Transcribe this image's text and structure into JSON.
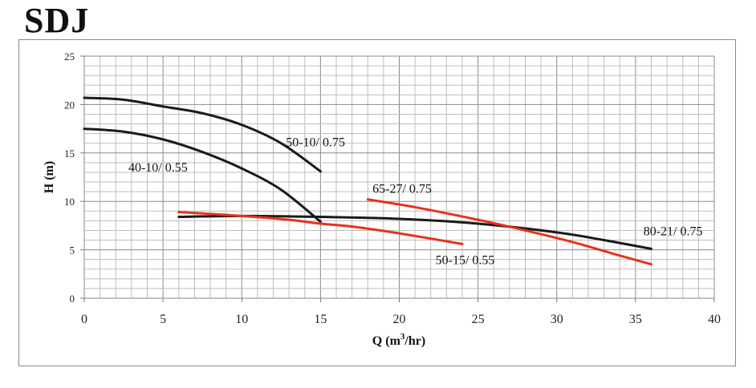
{
  "chart_data": {
    "type": "line",
    "title": "SDJ",
    "xlabel": "Q (m",
    "xlabel_sup": "3",
    "xlabel_tail": "/hr)",
    "ylabel": "H (m)",
    "xlim": [
      0,
      40
    ],
    "ylim": [
      0,
      25
    ],
    "xticks": [
      0,
      5,
      10,
      15,
      20,
      25,
      30,
      35,
      40
    ],
    "yticks": [
      0,
      5,
      10,
      15,
      20,
      25
    ],
    "grid": true,
    "grid_minor_step_x": 1,
    "grid_minor_step_y": 1,
    "series": [
      {
        "name": "50-10/ 0.75",
        "color": "#1a1a1a",
        "x": [
          0,
          2.5,
          5,
          7.5,
          10,
          12.5,
          15
        ],
        "y": [
          20.7,
          20.5,
          19.8,
          19.1,
          17.9,
          16.0,
          13.1
        ],
        "label_at": [
          12.8,
          15.7
        ]
      },
      {
        "name": "40-10/ 0.55",
        "color": "#1a1a1a",
        "x": [
          0,
          2.5,
          5,
          7.5,
          10,
          12.5,
          15
        ],
        "y": [
          17.5,
          17.2,
          16.4,
          15.1,
          13.4,
          11.2,
          7.9
        ],
        "label_at": [
          2.8,
          13.1
        ]
      },
      {
        "name": "80-21/ 0.75",
        "color": "#1a1a1a",
        "x": [
          6,
          10,
          15,
          20,
          25,
          30,
          33,
          36
        ],
        "y": [
          8.4,
          8.5,
          8.4,
          8.2,
          7.7,
          6.8,
          6.0,
          5.1
        ],
        "label_at": [
          35.5,
          6.5
        ]
      },
      {
        "name": "65-27/ 0.75",
        "color": "#e8321c",
        "x": [
          18,
          21,
          25,
          28,
          31,
          34,
          36
        ],
        "y": [
          10.2,
          9.4,
          8.1,
          7.0,
          5.8,
          4.4,
          3.5
        ],
        "label_at": [
          18.3,
          10.9
        ]
      },
      {
        "name": "50-15/ 0.55",
        "color": "#e8321c",
        "x": [
          6,
          10,
          13,
          15,
          17,
          20,
          24
        ],
        "y": [
          8.9,
          8.5,
          8.1,
          7.7,
          7.4,
          6.7,
          5.6
        ],
        "label_at": [
          22.3,
          3.5
        ]
      }
    ]
  }
}
